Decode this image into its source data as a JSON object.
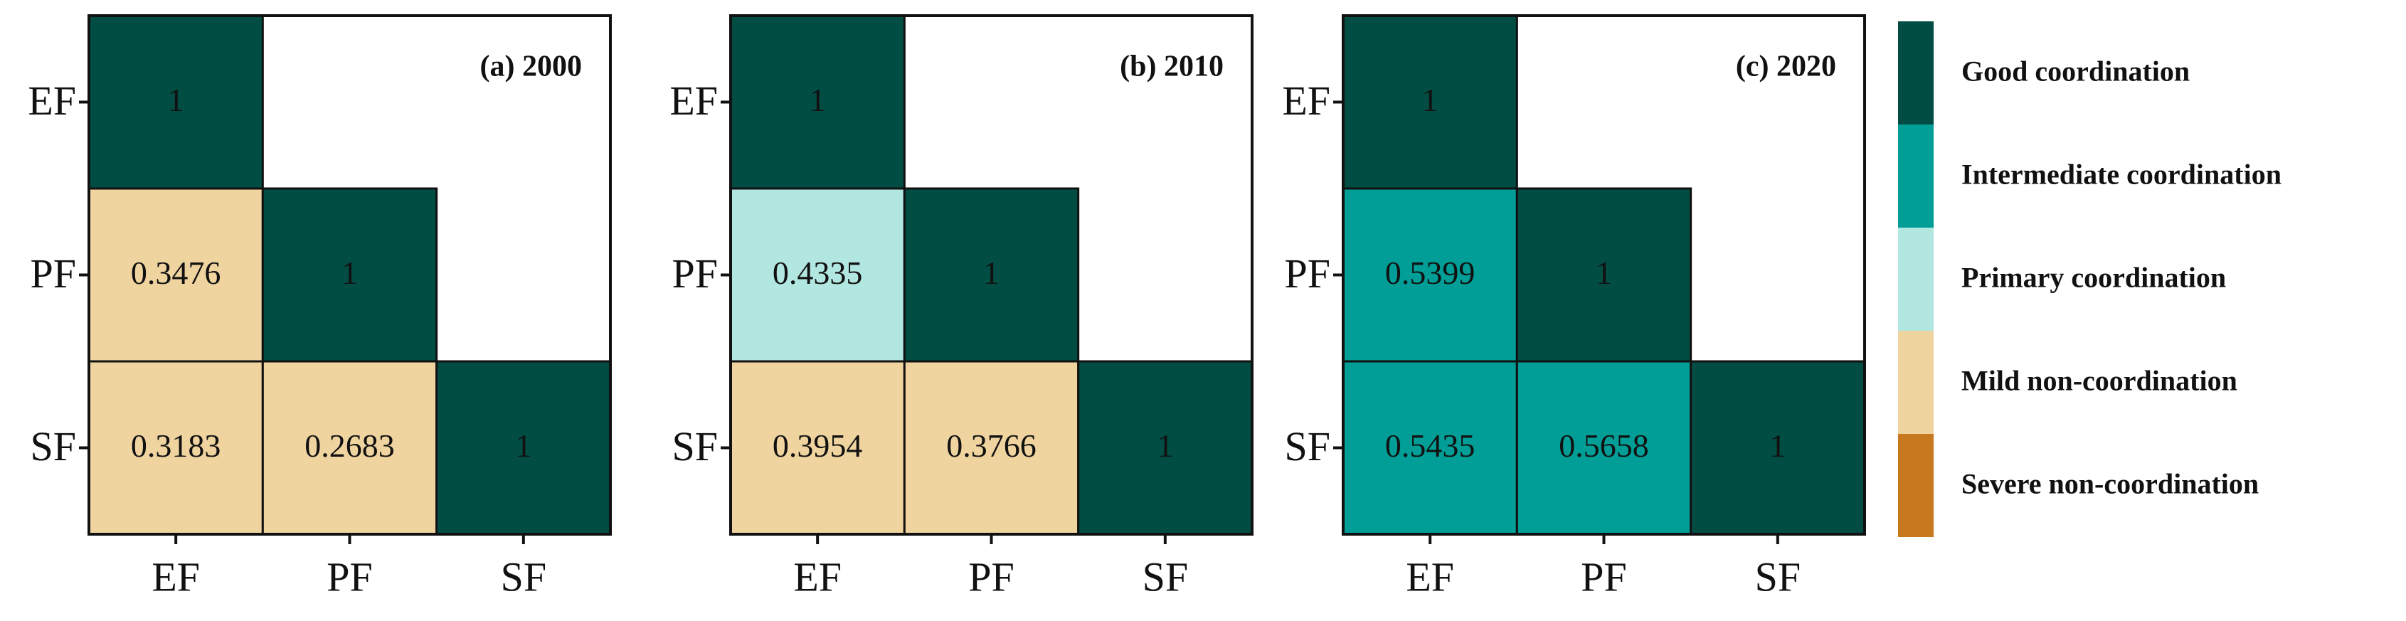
{
  "chart_data": [
    {
      "type": "heatmap",
      "title": "(a) 2000",
      "x": [
        "EF",
        "PF",
        "SF"
      ],
      "y": [
        "EF",
        "PF",
        "SF"
      ],
      "values": [
        [
          1,
          null,
          null
        ],
        [
          0.3476,
          1,
          null
        ],
        [
          0.3183,
          0.2683,
          1
        ]
      ],
      "colors": [
        [
          "#024d43",
          null,
          null
        ],
        [
          "#f0d4a0",
          "#024d43",
          null
        ],
        [
          "#f0d4a0",
          "#f0d4a0",
          "#024d43"
        ]
      ]
    },
    {
      "type": "heatmap",
      "title": "(b) 2010",
      "x": [
        "EF",
        "PF",
        "SF"
      ],
      "y": [
        "EF",
        "PF",
        "SF"
      ],
      "values": [
        [
          1,
          null,
          null
        ],
        [
          0.4335,
          1,
          null
        ],
        [
          0.3954,
          0.3766,
          1
        ]
      ],
      "colors": [
        [
          "#024d43",
          null,
          null
        ],
        [
          "#b2e6e0",
          "#024d43",
          null
        ],
        [
          "#f0d4a0",
          "#f0d4a0",
          "#024d43"
        ]
      ]
    },
    {
      "type": "heatmap",
      "title": "(c) 2020",
      "x": [
        "EF",
        "PF",
        "SF"
      ],
      "y": [
        "EF",
        "PF",
        "SF"
      ],
      "values": [
        [
          1,
          null,
          null
        ],
        [
          0.5399,
          1,
          null
        ],
        [
          0.5435,
          0.5658,
          1
        ]
      ],
      "colors": [
        [
          "#024d43",
          null,
          null
        ],
        [
          "#009e96",
          "#024d43",
          null
        ],
        [
          "#009e96",
          "#009e96",
          "#024d43"
        ]
      ]
    }
  ],
  "legend": [
    {
      "name": "Good coordination",
      "color": "#024d43"
    },
    {
      "name": "Intermediate coordination",
      "color": "#009e96"
    },
    {
      "name": "Primary coordination",
      "color": "#b2e6e0"
    },
    {
      "name": "Mild non-coordination",
      "color": "#f0d4a0"
    },
    {
      "name": "Severe non-coordination",
      "color": "#c8781e"
    }
  ]
}
